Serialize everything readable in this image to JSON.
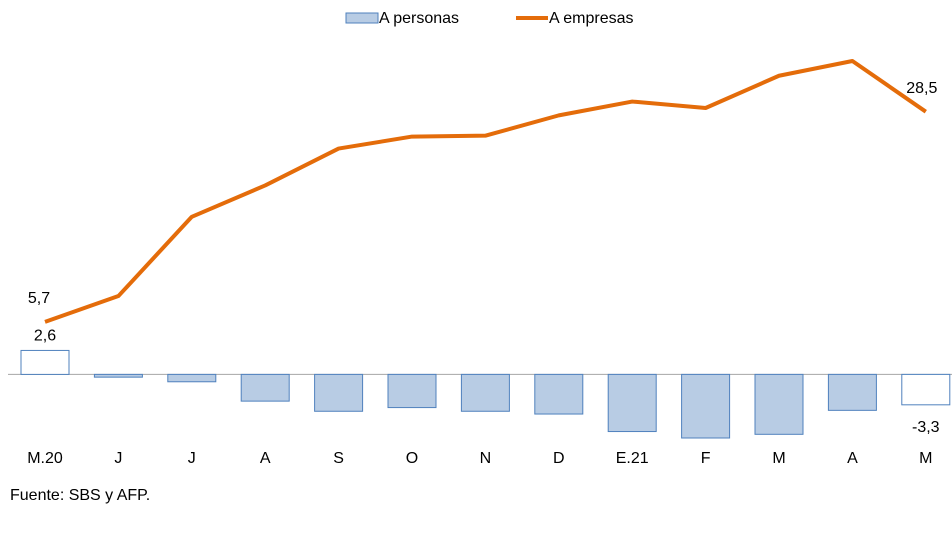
{
  "chart_data": {
    "type": "bar-line",
    "categories": [
      "M.20",
      "J",
      "J",
      "A",
      "S",
      "O",
      "N",
      "D",
      "E.21",
      "F",
      "M",
      "A",
      "M"
    ],
    "series": [
      {
        "name": "A personas",
        "type": "bar",
        "color": "#b8cce4",
        "edge_color": "#4f81bd",
        "colors": [
          "#ffffff",
          "#b8cce4",
          "#b8cce4",
          "#b8cce4",
          "#b8cce4",
          "#b8cce4",
          "#b8cce4",
          "#b8cce4",
          "#b8cce4",
          "#b8cce4",
          "#b8cce4",
          "#b8cce4",
          "#ffffff"
        ],
        "values": [
          2.6,
          -0.3,
          -0.8,
          -2.9,
          -4.0,
          -3.6,
          -4.0,
          -4.3,
          -6.2,
          -6.9,
          -6.5,
          -3.9,
          -3.3
        ],
        "value_labels": [
          "2,6",
          null,
          null,
          null,
          null,
          null,
          null,
          null,
          null,
          null,
          null,
          null,
          "-3,3"
        ]
      },
      {
        "name": "A empresas",
        "type": "line",
        "color": "#e46c0a",
        "values": [
          5.7,
          8.5,
          17.1,
          20.5,
          24.5,
          25.8,
          25.9,
          28.1,
          29.6,
          28.9,
          32.4,
          34.0,
          28.5
        ],
        "value_labels": [
          "5,7",
          null,
          null,
          null,
          null,
          null,
          null,
          null,
          null,
          null,
          null,
          null,
          "28,5"
        ]
      }
    ],
    "source": "Fuente: SBS y AFP."
  }
}
